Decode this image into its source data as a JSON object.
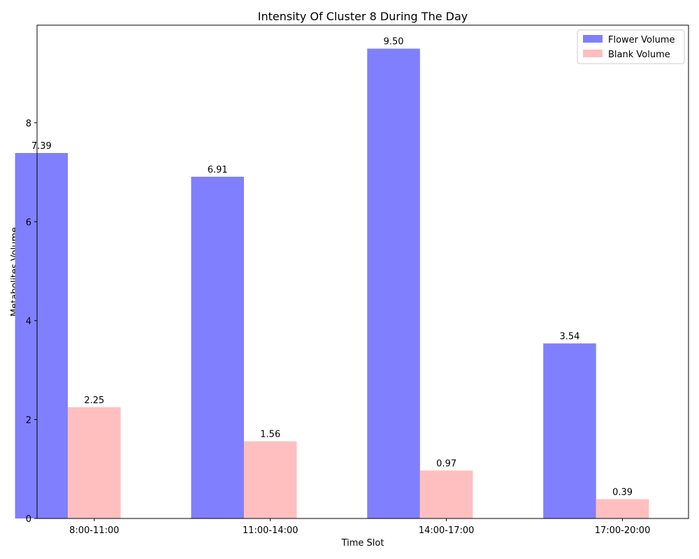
{
  "chart_data": {
    "type": "bar",
    "title": "Intensity Of Cluster 8 During The Day",
    "xlabel": "Time Slot",
    "ylabel": "Metabolites Volume",
    "categories": [
      "8:00-11:00",
      "11:00-14:00",
      "14:00-17:00",
      "17:00-20:00"
    ],
    "series": [
      {
        "name": "Flower Volume",
        "values": [
          7.39,
          6.91,
          9.5,
          3.54
        ],
        "labels": [
          "7.39",
          "6.91",
          "9.50",
          "3.54"
        ],
        "color": "#8080ff"
      },
      {
        "name": "Blank Volume",
        "values": [
          2.25,
          1.56,
          0.97,
          0.39
        ],
        "labels": [
          "2.25",
          "1.56",
          "0.97",
          "0.39"
        ],
        "color": "#ffbfbf"
      }
    ],
    "yticks": [
      0,
      2,
      4,
      6,
      8
    ],
    "ytick_labels": [
      "0",
      "2",
      "4",
      "6",
      "8"
    ],
    "ylim": [
      0,
      9.975
    ],
    "grid": false,
    "legend_position": "top-right"
  }
}
